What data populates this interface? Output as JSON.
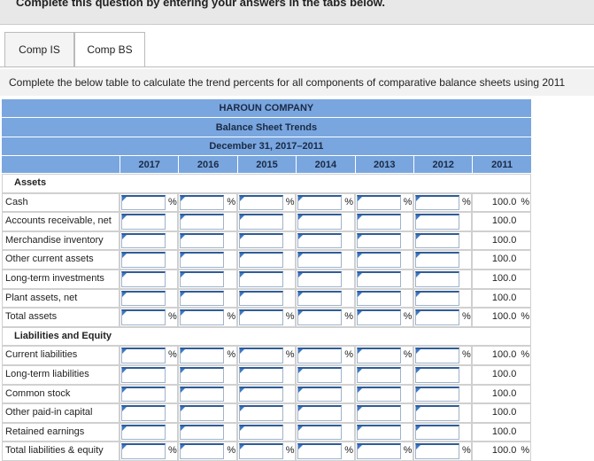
{
  "header": {
    "instruction": "Complete this question by entering your answers in the tabs below."
  },
  "tabs": [
    {
      "label": "Comp IS",
      "active": false
    },
    {
      "label": "Comp BS",
      "active": true
    }
  ],
  "prompt": "Complete the below table to calculate the trend percents for all components of comparative balance sheets using 2011",
  "table": {
    "title": "HAROUN COMPANY",
    "subtitle": "Balance Sheet Trends",
    "period": "December 31, 2017–2011",
    "years": [
      "2017",
      "2016",
      "2015",
      "2014",
      "2013",
      "2012",
      "2011"
    ],
    "sections": [
      {
        "heading": "Assets",
        "rows": [
          {
            "label": "Cash",
            "base": "100.0",
            "unit": "%"
          },
          {
            "label": "Accounts receivable, net",
            "base": "100.0"
          },
          {
            "label": "Merchandise inventory",
            "base": "100.0"
          },
          {
            "label": "Other current assets",
            "base": "100.0"
          },
          {
            "label": "Long-term investments",
            "base": "100.0"
          },
          {
            "label": "Plant assets, net",
            "base": "100.0"
          },
          {
            "label": "Total assets",
            "base": "100.0",
            "unit": "%"
          }
        ]
      },
      {
        "heading": "Liabilities and Equity",
        "rows": [
          {
            "label": "Current liabilities",
            "base": "100.0",
            "unit": "%"
          },
          {
            "label": "Long-term liabilities",
            "base": "100.0"
          },
          {
            "label": "Common stock",
            "base": "100.0"
          },
          {
            "label": "Other paid-in capital",
            "base": "100.0"
          },
          {
            "label": "Retained earnings",
            "base": "100.0"
          },
          {
            "label": "Total liabilities & equity",
            "base": "100.0",
            "unit": "%"
          }
        ]
      }
    ]
  }
}
